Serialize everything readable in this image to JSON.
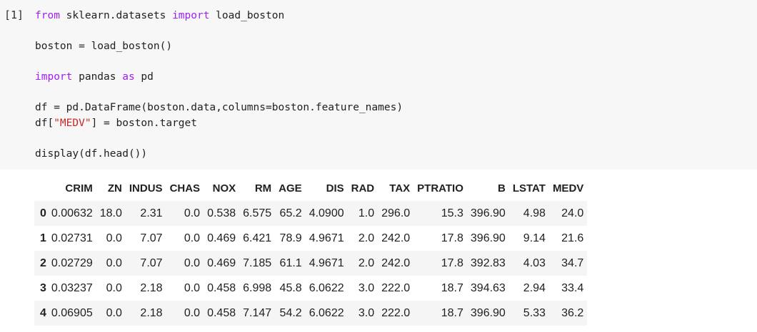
{
  "cell": {
    "prompt": "[1]",
    "code_lines": [
      [
        {
          "t": "from",
          "k": "kw"
        },
        {
          "t": " sklearn.datasets ",
          "k": "p"
        },
        {
          "t": "import",
          "k": "kw"
        },
        {
          "t": " load_boston",
          "k": "p"
        }
      ],
      [],
      [
        {
          "t": "boston = load_boston()",
          "k": "p"
        }
      ],
      [],
      [
        {
          "t": "import",
          "k": "kw"
        },
        {
          "t": " pandas ",
          "k": "p"
        },
        {
          "t": "as",
          "k": "kw"
        },
        {
          "t": " pd",
          "k": "p"
        }
      ],
      [],
      [
        {
          "t": "df = pd.DataFrame(boston.data,columns=boston.feature_names)",
          "k": "p"
        }
      ],
      [
        {
          "t": "df[",
          "k": "p"
        },
        {
          "t": "\"MEDV\"",
          "k": "str"
        },
        {
          "t": "] = boston.target",
          "k": "p"
        }
      ],
      [],
      [
        {
          "t": "display(df.head())",
          "k": "p"
        }
      ]
    ]
  },
  "output_table": {
    "columns": [
      "",
      "CRIM",
      "ZN",
      "INDUS",
      "CHAS",
      "NOX",
      "RM",
      "AGE",
      "DIS",
      "RAD",
      "TAX",
      "PTRATIO",
      "B",
      "LSTAT",
      "MEDV"
    ],
    "rows": [
      {
        "index": "0",
        "values": [
          "0.00632",
          "18.0",
          "2.31",
          "0.0",
          "0.538",
          "6.575",
          "65.2",
          "4.0900",
          "1.0",
          "296.0",
          "15.3",
          "396.90",
          "4.98",
          "24.0"
        ]
      },
      {
        "index": "1",
        "values": [
          "0.02731",
          "0.0",
          "7.07",
          "0.0",
          "0.469",
          "6.421",
          "78.9",
          "4.9671",
          "2.0",
          "242.0",
          "17.8",
          "396.90",
          "9.14",
          "21.6"
        ]
      },
      {
        "index": "2",
        "values": [
          "0.02729",
          "0.0",
          "7.07",
          "0.0",
          "0.469",
          "7.185",
          "61.1",
          "4.9671",
          "2.0",
          "242.0",
          "17.8",
          "392.83",
          "4.03",
          "34.7"
        ]
      },
      {
        "index": "3",
        "values": [
          "0.03237",
          "0.0",
          "2.18",
          "0.0",
          "0.458",
          "6.998",
          "45.8",
          "6.0622",
          "3.0",
          "222.0",
          "18.7",
          "394.63",
          "2.94",
          "33.4"
        ]
      },
      {
        "index": "4",
        "values": [
          "0.06905",
          "0.0",
          "2.18",
          "0.0",
          "0.458",
          "7.147",
          "54.2",
          "6.0622",
          "3.0",
          "222.0",
          "18.7",
          "396.90",
          "5.33",
          "36.2"
        ]
      }
    ]
  }
}
